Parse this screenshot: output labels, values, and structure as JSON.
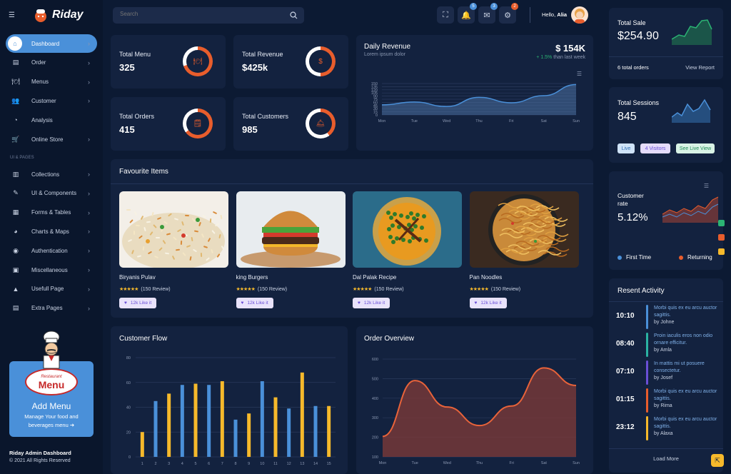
{
  "brand": {
    "name": "Riday"
  },
  "search": {
    "placeholder": "Search"
  },
  "topbar": {
    "greeting": "Hello,",
    "user": "Alia",
    "badges": [
      "5",
      "3",
      "2"
    ]
  },
  "sidebar": {
    "items": [
      {
        "label": "Dashboard",
        "icon": "home-icon",
        "chev": true
      },
      {
        "label": "Order",
        "icon": "clipboard-icon",
        "chev": true
      },
      {
        "label": "Menus",
        "icon": "menu-icon",
        "chev": true
      },
      {
        "label": "Customer",
        "icon": "users-icon",
        "chev": true
      },
      {
        "label": "Analysis",
        "icon": "chart-icon",
        "chev": false
      },
      {
        "label": "Online Store",
        "icon": "cart-icon",
        "chev": true
      }
    ],
    "section": "UI & PAGES",
    "items2": [
      {
        "label": "Collections",
        "icon": "collections-icon"
      },
      {
        "label": "UI & Components",
        "icon": "components-icon"
      },
      {
        "label": "Forms & Tables",
        "icon": "forms-icon"
      },
      {
        "label": "Charts & Maps",
        "icon": "pie-icon"
      },
      {
        "label": "Authentication",
        "icon": "lock-icon"
      },
      {
        "label": "Miscellaneous",
        "icon": "misc-icon"
      },
      {
        "label": "Usefull Page",
        "icon": "person-icon"
      },
      {
        "label": "Extra Pages",
        "icon": "pages-icon"
      }
    ],
    "promo": {
      "badge_top": "Restaurant",
      "badge_main": "Menu",
      "title": "Add Menu",
      "text": "Manage Your food and beverages menu ➔"
    },
    "footer": {
      "title": "Riday Admin Dashboard",
      "copy": "© 2021 All Rights Reserved"
    }
  },
  "stats": [
    {
      "label": "Total Menu",
      "value": "325",
      "pct": 0.7,
      "icon": "cloche-icon",
      "glyph": "🍽"
    },
    {
      "label": "Total Revenue",
      "value": "$425k",
      "pct": 0.5,
      "icon": "dollar-icon",
      "glyph": "$"
    },
    {
      "label": "Total Orders",
      "value": "415",
      "pct": 0.65,
      "icon": "receipt-icon",
      "glyph": "🗒"
    },
    {
      "label": "Total Customers",
      "value": "985",
      "pct": 0.4,
      "icon": "serving-icon",
      "glyph": "🛎"
    }
  ],
  "revenue": {
    "title": "Daily Revenue",
    "subtitle": "Lorem ipsum dolor",
    "amount": "$ 154K",
    "change": "+ 1.5%",
    "change_text": "than last week"
  },
  "favourites": {
    "title": "Favourite Items",
    "items": [
      {
        "name": "Biryanis Pulav",
        "review": "(150 Review)",
        "like": "12k Like it"
      },
      {
        "name": "king Burgers",
        "review": "(150 Review)",
        "like": "12k Like it"
      },
      {
        "name": "Dal Palak Recipe",
        "review": "(150 Review)",
        "like": "12k Like it"
      },
      {
        "name": "Pan Noodles",
        "review": "(150 Review)",
        "like": "12k Like it"
      }
    ]
  },
  "customer_flow": {
    "title": "Customer Flow"
  },
  "order_overview": {
    "title": "Order Overview"
  },
  "total_sale": {
    "label": "Total Sale",
    "value": "$254.90",
    "orders": "6 total orders",
    "link": "View Report"
  },
  "sessions": {
    "label": "Total Sessions",
    "value": "845",
    "chips": [
      "Live",
      "4 Visitors",
      "See Live View"
    ]
  },
  "customer_rate": {
    "label": "Customer rate",
    "value": "5.12%",
    "legend": [
      "First Time",
      "Returning"
    ]
  },
  "activity": {
    "title": "Resent Activity",
    "items": [
      {
        "time": "10:10",
        "text": "Morbi quis ex eu arcu auctor sagittis.",
        "by": "by Johne",
        "color": "#4a90d9"
      },
      {
        "time": "08:40",
        "text": "Proin iaculis eros non odio ornare efficitur.",
        "by": "by Amla",
        "color": "#2bb3a3"
      },
      {
        "time": "07:10",
        "text": "In mattis mi ut posuere consectetur.",
        "by": "by Josef",
        "color": "#6a4fd6"
      },
      {
        "time": "01:15",
        "text": "Morbi quis ex eu arcu auctor sagittis.",
        "by": "by Rima",
        "color": "#e85d2c"
      },
      {
        "time": "23:12",
        "text": "Morbi quis ex eu arcu auctor sagittis.",
        "by": "by Alaxa",
        "color": "#f6b92b"
      }
    ],
    "more": "Load More"
  },
  "colors": {
    "accent": "#4a90d9",
    "orange": "#e85d2c",
    "yellow": "#f6b92b",
    "green": "#2bb373"
  },
  "chart_data": [
    {
      "type": "area",
      "title": "Daily Revenue",
      "categories": [
        "Mon",
        "Tue",
        "Wed",
        "Thu",
        "Fri",
        "Sat",
        "Sun"
      ],
      "values": [
        48,
        62,
        40,
        84,
        58,
        92,
        145
      ],
      "ylim": [
        0,
        150
      ],
      "yticks": [
        0,
        15,
        30,
        45,
        60,
        75,
        90,
        105,
        120,
        135,
        150
      ]
    },
    {
      "type": "bar",
      "title": "Customer Flow",
      "categories": [
        "1",
        "2",
        "3",
        "4",
        "5",
        "6",
        "7",
        "8",
        "9",
        "10",
        "11",
        "12",
        "13",
        "14",
        "15"
      ],
      "series": [
        {
          "values": [
            0,
            45,
            0,
            58,
            0,
            58,
            0,
            30,
            0,
            61,
            0,
            39,
            0,
            41,
            0
          ],
          "color": "#4a90d9"
        },
        {
          "values": [
            20,
            0,
            51,
            0,
            59,
            0,
            61,
            0,
            35,
            0,
            48,
            0,
            68,
            0,
            41
          ],
          "color": "#f6b92b"
        }
      ],
      "ylim": [
        0,
        80
      ],
      "yticks": [
        0,
        20,
        40,
        60,
        80
      ]
    },
    {
      "type": "area",
      "title": "Order Overview",
      "categories": [
        "Mon",
        "Tue",
        "Wed",
        "Thu",
        "Fri",
        "Sat",
        "Sun"
      ],
      "values": [
        205,
        490,
        355,
        260,
        360,
        555,
        465
      ],
      "ylim": [
        100,
        600
      ],
      "yticks": [
        100,
        200,
        300,
        400,
        500,
        600
      ]
    }
  ]
}
